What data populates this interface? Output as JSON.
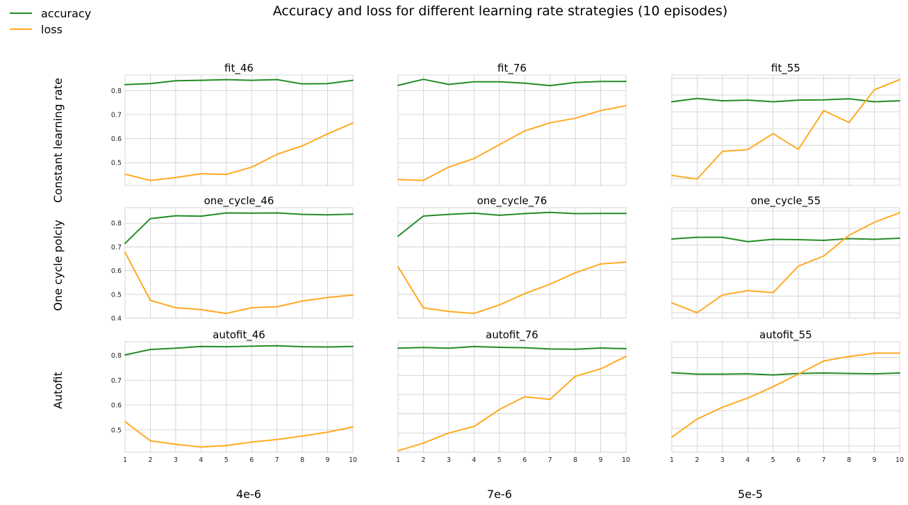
{
  "figure": {
    "title": "Accuracy and loss for different learning rate strategies (10 episodes)",
    "row_labels": [
      "Constant learning rate",
      "One cycle polciy",
      "Autofit"
    ],
    "column_labels": [
      "4e-6",
      "7e-6",
      "5e-5"
    ],
    "legend": [
      {
        "label": "accuracy",
        "color": "#228B22"
      },
      {
        "label": "loss",
        "color": "#FFA91F"
      }
    ],
    "legend_position": "top-left"
  },
  "chart_data": [
    {
      "type": "line",
      "title": "fit_46",
      "x": [
        1,
        2,
        3,
        4,
        5,
        6,
        7,
        8,
        9,
        10
      ],
      "ylim": [
        0.405,
        0.865
      ],
      "yticks": [
        0.5,
        0.6,
        0.7,
        0.8
      ],
      "show_ytick_labels": true,
      "show_xtick_labels": false,
      "grid": true,
      "series": [
        {
          "name": "accuracy",
          "color": "#228B22",
          "values": [
            0.825,
            0.829,
            0.841,
            0.843,
            0.846,
            0.843,
            0.846,
            0.828,
            0.829,
            0.843
          ]
        },
        {
          "name": "loss",
          "color": "#FFA91F",
          "values": [
            0.452,
            0.426,
            0.438,
            0.454,
            0.451,
            0.481,
            0.535,
            0.57,
            0.62,
            0.665
          ]
        }
      ]
    },
    {
      "type": "line",
      "title": "fit_76",
      "x": [
        1,
        2,
        3,
        4,
        5,
        6,
        7,
        8,
        9,
        10
      ],
      "ylim": [
        0.405,
        0.865
      ],
      "yticks": [
        0.5,
        0.6,
        0.7,
        0.8
      ],
      "show_ytick_labels": false,
      "show_xtick_labels": false,
      "grid": true,
      "series": [
        {
          "name": "accuracy",
          "color": "#228B22",
          "values": [
            0.822,
            0.847,
            0.826,
            0.837,
            0.837,
            0.831,
            0.821,
            0.834,
            0.838,
            0.838
          ]
        },
        {
          "name": "loss",
          "color": "#FFA91F",
          "values": [
            0.43,
            0.426,
            0.482,
            0.517,
            0.575,
            0.632,
            0.666,
            0.685,
            0.717,
            0.737
          ]
        }
      ]
    },
    {
      "type": "line",
      "title": "fit_55",
      "x": [
        1,
        2,
        3,
        4,
        5,
        6,
        7,
        8,
        9,
        10
      ],
      "ylim": [
        0.57,
        0.9
      ],
      "yticks": [
        0.59,
        0.64,
        0.69,
        0.74,
        0.79,
        0.84,
        0.89
      ],
      "show_ytick_labels": false,
      "show_xtick_labels": false,
      "grid": true,
      "series": [
        {
          "name": "accuracy",
          "color": "#228B22",
          "values": [
            0.82,
            0.83,
            0.823,
            0.825,
            0.82,
            0.825,
            0.826,
            0.829,
            0.82,
            0.823
          ]
        },
        {
          "name": "loss",
          "color": "#FFA91F",
          "values": [
            0.6,
            0.589,
            0.672,
            0.677,
            0.725,
            0.678,
            0.794,
            0.758,
            0.856,
            0.886
          ]
        }
      ]
    },
    {
      "type": "line",
      "title": "one_cycle_46",
      "x": [
        1,
        2,
        3,
        4,
        5,
        6,
        7,
        8,
        9,
        10
      ],
      "ylim": [
        0.4,
        0.865
      ],
      "yticks": [
        0.4,
        0.5,
        0.6,
        0.7,
        0.8
      ],
      "show_ytick_labels": true,
      "show_xtick_labels": false,
      "grid": true,
      "series": [
        {
          "name": "accuracy",
          "color": "#228B22",
          "values": [
            0.715,
            0.819,
            0.831,
            0.829,
            0.843,
            0.842,
            0.843,
            0.837,
            0.835,
            0.838
          ]
        },
        {
          "name": "loss",
          "color": "#FFA91F",
          "values": [
            0.677,
            0.475,
            0.444,
            0.436,
            0.42,
            0.444,
            0.448,
            0.472,
            0.487,
            0.497
          ]
        }
      ]
    },
    {
      "type": "line",
      "title": "one_cycle_76",
      "x": [
        1,
        2,
        3,
        4,
        5,
        6,
        7,
        8,
        9,
        10
      ],
      "ylim": [
        0.4,
        0.865
      ],
      "yticks": [
        0.4,
        0.5,
        0.6,
        0.7,
        0.8
      ],
      "show_ytick_labels": false,
      "show_xtick_labels": false,
      "grid": true,
      "series": [
        {
          "name": "accuracy",
          "color": "#228B22",
          "values": [
            0.745,
            0.83,
            0.837,
            0.842,
            0.833,
            0.84,
            0.845,
            0.84,
            0.841,
            0.841
          ]
        },
        {
          "name": "loss",
          "color": "#FFA91F",
          "values": [
            0.616,
            0.443,
            0.428,
            0.42,
            0.456,
            0.503,
            0.543,
            0.591,
            0.628,
            0.636
          ]
        }
      ]
    },
    {
      "type": "line",
      "title": "one_cycle_55",
      "x": [
        1,
        2,
        3,
        4,
        5,
        6,
        7,
        8,
        9,
        10
      ],
      "ylim": [
        0.575,
        0.9
      ],
      "yticks": [
        0.59,
        0.64,
        0.69,
        0.74,
        0.79,
        0.84,
        0.89
      ],
      "show_ytick_labels": false,
      "show_xtick_labels": false,
      "grid": true,
      "series": [
        {
          "name": "accuracy",
          "color": "#228B22",
          "values": [
            0.808,
            0.813,
            0.813,
            0.8,
            0.807,
            0.806,
            0.804,
            0.809,
            0.807,
            0.81
          ]
        },
        {
          "name": "loss",
          "color": "#FFA91F",
          "values": [
            0.62,
            0.591,
            0.643,
            0.656,
            0.65,
            0.728,
            0.758,
            0.819,
            0.857,
            0.885
          ]
        }
      ]
    },
    {
      "type": "line",
      "title": "autofit_46",
      "x": [
        1,
        2,
        3,
        4,
        5,
        6,
        7,
        8,
        9,
        10
      ],
      "ylim": [
        0.41,
        0.855
      ],
      "yticks": [
        0.5,
        0.6,
        0.7,
        0.8
      ],
      "show_ytick_labels": true,
      "show_xtick_labels": true,
      "grid": true,
      "series": [
        {
          "name": "accuracy",
          "color": "#228B22",
          "values": [
            0.802,
            0.824,
            0.829,
            0.836,
            0.835,
            0.837,
            0.839,
            0.835,
            0.834,
            0.836
          ]
        },
        {
          "name": "loss",
          "color": "#FFA91F",
          "values": [
            0.533,
            0.456,
            0.442,
            0.431,
            0.437,
            0.451,
            0.461,
            0.475,
            0.491,
            0.512
          ]
        }
      ]
    },
    {
      "type": "line",
      "title": "autofit_76",
      "x": [
        1,
        2,
        3,
        4,
        5,
        6,
        7,
        8,
        9,
        10
      ],
      "ylim": [
        0.4,
        0.86
      ],
      "yticks": [
        0.4,
        0.48,
        0.56,
        0.64,
        0.72,
        0.8
      ],
      "show_ytick_labels": false,
      "show_xtick_labels": true,
      "grid": true,
      "series": [
        {
          "name": "accuracy",
          "color": "#228B22",
          "values": [
            0.833,
            0.836,
            0.833,
            0.84,
            0.837,
            0.835,
            0.83,
            0.829,
            0.834,
            0.831
          ]
        },
        {
          "name": "loss",
          "color": "#FFA91F",
          "values": [
            0.406,
            0.438,
            0.48,
            0.507,
            0.578,
            0.631,
            0.62,
            0.716,
            0.747,
            0.799
          ]
        }
      ]
    },
    {
      "type": "line",
      "title": "autofit_55",
      "x": [
        1,
        2,
        3,
        4,
        5,
        6,
        7,
        8,
        9,
        10
      ],
      "ylim": [
        0.56,
        0.86
      ],
      "yticks": [
        0.577,
        0.625,
        0.673,
        0.721,
        0.769,
        0.817
      ],
      "show_ytick_labels": false,
      "show_xtick_labels": true,
      "grid": true,
      "series": [
        {
          "name": "accuracy",
          "color": "#228B22",
          "values": [
            0.776,
            0.772,
            0.772,
            0.773,
            0.77,
            0.774,
            0.775,
            0.774,
            0.773,
            0.775
          ]
        },
        {
          "name": "loss",
          "color": "#FFA91F",
          "values": [
            0.601,
            0.65,
            0.682,
            0.707,
            0.738,
            0.772,
            0.808,
            0.82,
            0.829,
            0.829
          ]
        }
      ]
    }
  ]
}
